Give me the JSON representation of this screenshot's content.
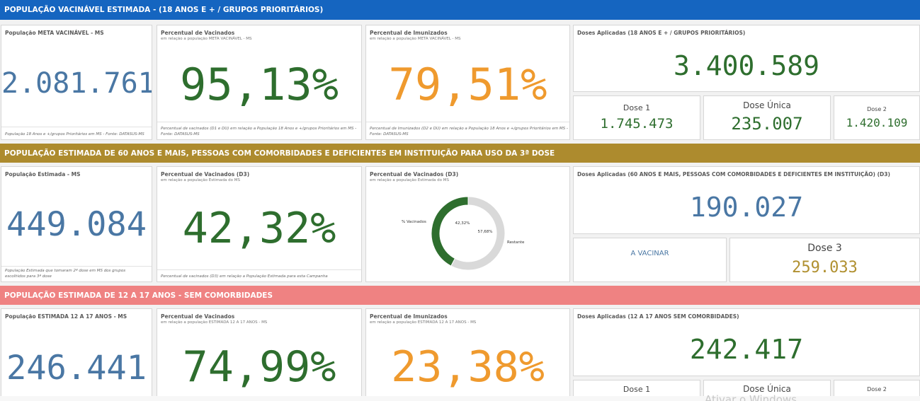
{
  "colors": {
    "band1": "#1565c0",
    "band2": "#ad8b2e",
    "band3": "#ef8282",
    "blue": "#4a77a4",
    "green": "#2e6e2e",
    "orange": "#ef9a2e",
    "gold": "#b09030"
  },
  "section1": {
    "header": "POPULAÇÃO VACINÁVEL ESTIMADA - (18 ANOS E + / GRUPOS PRIORITÁRIOS)",
    "card1": {
      "title": "População META VACINÁVEL - MS",
      "value": "2.081.761",
      "footer": "População 18 Anos e +/grupos Prioritários em MS - Fonte: DATASUS-MS"
    },
    "card2": {
      "title": "Percentual de Vacinados",
      "subtitle": "em relação a população META VACINÁVEL - MS",
      "value": "95,13%",
      "footer": "Percentual de vacinados (D1 e DU) em relação a População 18 Anos e +/grupos Prioritários em MS - Fonte: DATASUS-MS"
    },
    "card3": {
      "title": "Percentual de Imunizados",
      "subtitle": "em relação a população META VACINÁVEL - MS",
      "value": "79,51%",
      "footer": "Percentual de Imunizados (D2 e DU) em relação a População 18 Anos e +/grupos Prioritários em MS - Fonte: DATASUS-MS"
    },
    "card4": {
      "title": "Doses Aplicadas (18 ANOS E + / GRUPOS PRIORITÁRIOS)",
      "value": "3.400.589",
      "doses": [
        {
          "label": "Dose 1",
          "value": "1.745.473"
        },
        {
          "label": "Dose Única",
          "value": "235.007"
        },
        {
          "label": "Dose 2",
          "value": "1.420.109"
        }
      ]
    }
  },
  "section2": {
    "header": "POPULAÇÃO ESTIMADA DE 60 ANOS E MAIS, PESSOAS COM COMORBIDADES E DEFICIENTES EM INSTITUIÇÃO PARA USO DA 3ª DOSE",
    "card1": {
      "title": "População Estimada - MS",
      "value": "449.084",
      "footer": "População Estimada que tomaram 2ª dose em MS dos grupos escolhidos para 3ª dose"
    },
    "card2": {
      "title": "Percentual de Vacinados (D3)",
      "subtitle": "em relação a população Estimada do MS",
      "value": "42,32%",
      "footer": "Percentual de vacinados (D3) em relação a População Estimada para esta Campanha"
    },
    "card3": {
      "title": "Percentual de Vacinados (D3)",
      "subtitle": "em relação a população Estimada do MS"
    },
    "card4": {
      "title": "Doses Aplicadas (60 ANOS E MAIS, PESSOAS COM COMORBIDADES E DEFICIENTES EM INSTITUIÇÃO) (D3)",
      "value": "190.027",
      "a_vacinar": "A VACINAR",
      "dose3_label": "Dose 3",
      "dose3_value": "259.033"
    }
  },
  "chart_data": {
    "type": "pie",
    "categories": [
      "% Vacinados",
      "Restante"
    ],
    "values": [
      42.32,
      57.68
    ],
    "labels": [
      "42,32%",
      "57,68%"
    ],
    "colors": [
      "#2e6e2e",
      "#d9d9d9"
    ]
  },
  "section3": {
    "header": "POPULAÇÃO ESTIMADA DE 12 A 17 ANOS - SEM COMORBIDADES",
    "card1": {
      "title": "População ESTIMADA 12 A 17 ANOS - MS",
      "value": "246.441"
    },
    "card2": {
      "title": "Percentual de Vacinados",
      "subtitle": "em relação a população ESTIMADA 12 A 17 ANOS - MS",
      "value": "74,99%"
    },
    "card3": {
      "title": "Percentual de Imunizados",
      "subtitle": "em relação a população ESTIMADA 12 A 17 ANOS - MS",
      "value": "23,38%"
    },
    "card4": {
      "title": "Doses Aplicadas (12 A 17 ANOS SEM COMORBIDADES)",
      "value": "242.417",
      "doses": [
        {
          "label": "Dose 1"
        },
        {
          "label": "Dose Única"
        },
        {
          "label": "Dose 2"
        }
      ]
    }
  },
  "watermark": "Ativar o Windows"
}
